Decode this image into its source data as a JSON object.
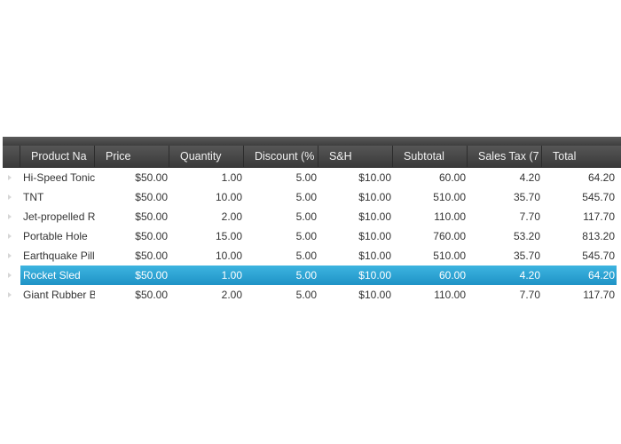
{
  "columns": [
    "Product Na",
    "Price",
    "Quantity",
    "Discount (%",
    "S&H",
    "Subtotal",
    "Sales Tax (7",
    "Total"
  ],
  "rows": [
    {
      "name": "Hi-Speed Tonic",
      "price": "$50.00",
      "qty": "1.00",
      "disc": "5.00",
      "sh": "$10.00",
      "sub": "60.00",
      "tax": "4.20",
      "total": "64.20"
    },
    {
      "name": "TNT",
      "price": "$50.00",
      "qty": "10.00",
      "disc": "5.00",
      "sh": "$10.00",
      "sub": "510.00",
      "tax": "35.70",
      "total": "545.70"
    },
    {
      "name": "Jet-propelled R",
      "price": "$50.00",
      "qty": "2.00",
      "disc": "5.00",
      "sh": "$10.00",
      "sub": "110.00",
      "tax": "7.70",
      "total": "117.70"
    },
    {
      "name": "Portable Hole",
      "price": "$50.00",
      "qty": "15.00",
      "disc": "5.00",
      "sh": "$10.00",
      "sub": "760.00",
      "tax": "53.20",
      "total": "813.20"
    },
    {
      "name": "Earthquake Pill",
      "price": "$50.00",
      "qty": "10.00",
      "disc": "5.00",
      "sh": "$10.00",
      "sub": "510.00",
      "tax": "35.70",
      "total": "545.70"
    },
    {
      "name": "Rocket Sled",
      "price": "$50.00",
      "qty": "1.00",
      "disc": "5.00",
      "sh": "$10.00",
      "sub": "60.00",
      "tax": "4.20",
      "total": "64.20"
    },
    {
      "name": "Giant Rubber B",
      "price": "$50.00",
      "qty": "2.00",
      "disc": "5.00",
      "sh": "$10.00",
      "sub": "110.00",
      "tax": "7.70",
      "total": "117.70"
    }
  ],
  "selected_row_index": 5,
  "colors": {
    "header_bg": "#4a4a4a",
    "header_text": "#f2f2f2",
    "selection": "#2aa3d6",
    "row_text": "#333333"
  },
  "icons": {
    "row_header": "row-arrow-icon"
  }
}
